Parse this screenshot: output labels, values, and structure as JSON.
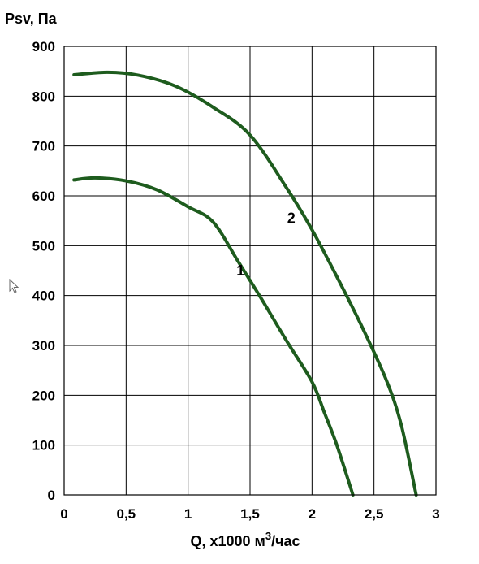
{
  "chart_data": {
    "type": "line",
    "ylabel": "Psv, Па",
    "xlabel_parts": {
      "prefix": "Q, x1000 м",
      "sup": "3",
      "suffix": "/час"
    },
    "xlim": [
      0,
      3
    ],
    "ylim": [
      0,
      900
    ],
    "x_ticks": [
      0,
      0.5,
      1,
      1.5,
      2,
      2.5,
      3
    ],
    "x_tick_labels": [
      "0",
      "0,5",
      "1",
      "1,5",
      "2",
      "2,5",
      "3"
    ],
    "y_ticks": [
      0,
      100,
      200,
      300,
      400,
      500,
      600,
      700,
      800,
      900
    ],
    "y_tick_labels": [
      "0",
      "100",
      "200",
      "300",
      "400",
      "500",
      "600",
      "700",
      "800",
      "900"
    ],
    "grid": true,
    "line_color": "#1e5c1e",
    "series": [
      {
        "name": "1",
        "x": [
          0.08,
          0.25,
          0.5,
          0.75,
          1.0,
          1.2,
          1.4,
          1.6,
          1.8,
          2.0,
          2.1,
          2.2,
          2.33
        ],
        "y": [
          632,
          636,
          630,
          612,
          578,
          548,
          470,
          390,
          307,
          227,
          165,
          100,
          0
        ]
      },
      {
        "name": "2",
        "x": [
          0.08,
          0.35,
          0.6,
          0.9,
          1.2,
          1.5,
          1.8,
          2.0,
          2.2,
          2.4,
          2.6,
          2.72,
          2.84
        ],
        "y": [
          843,
          848,
          842,
          820,
          778,
          722,
          614,
          532,
          438,
          339,
          230,
          140,
          0
        ]
      }
    ]
  }
}
